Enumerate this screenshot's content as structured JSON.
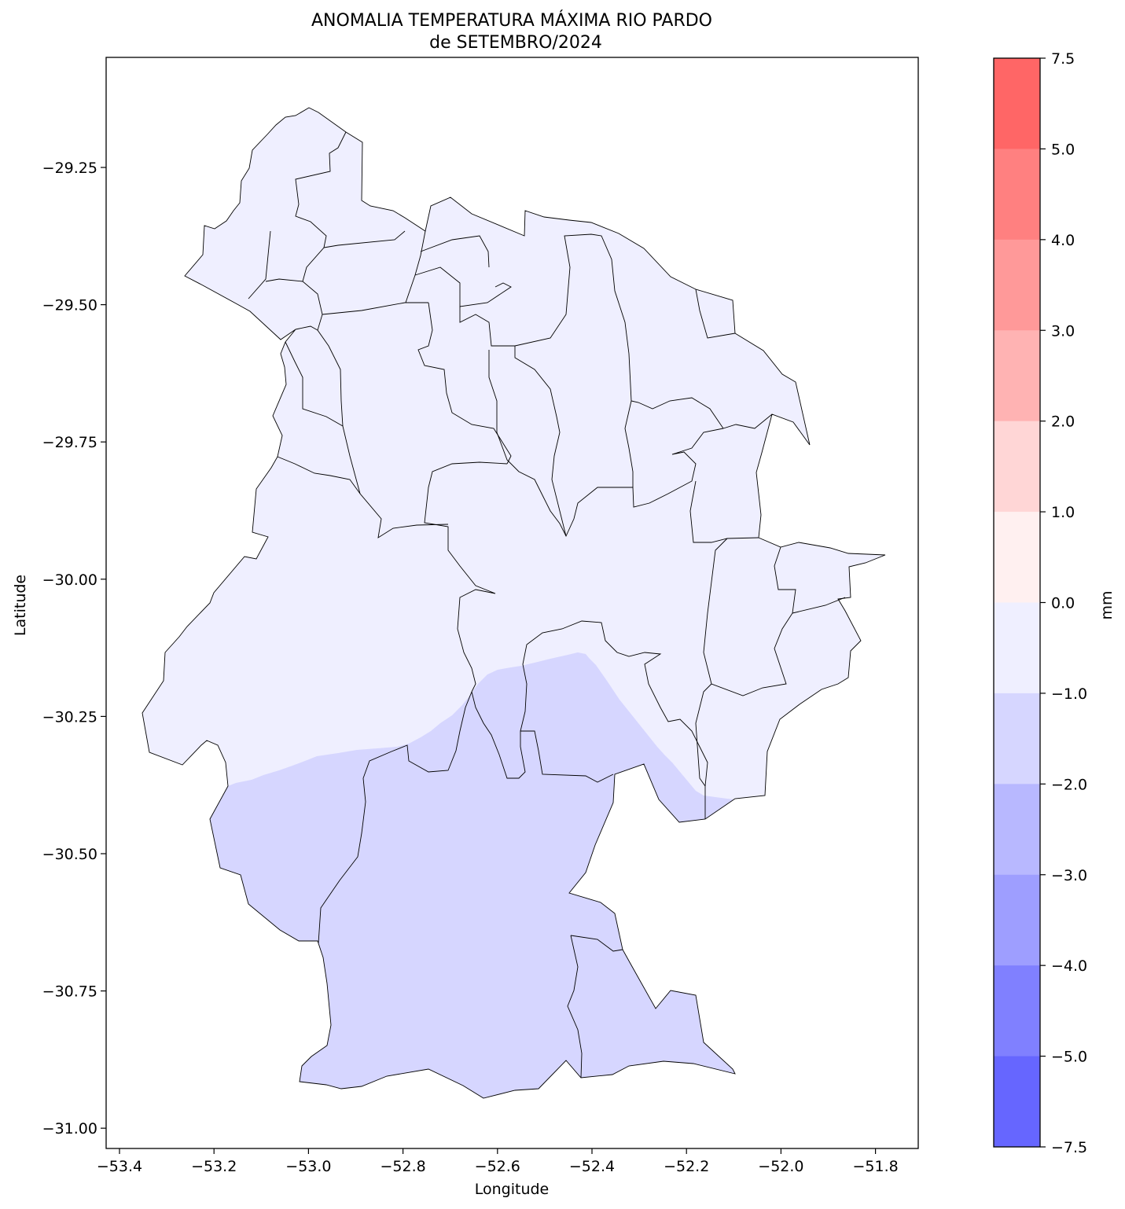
{
  "title_line1": "ANOMALIA TEMPERATURA MÁXIMA RIO PARDO",
  "title_line2": "de SETEMBRO/2024",
  "xlabel": "Longitude",
  "ylabel": "Latitude",
  "x_ticks": [
    "−53.4",
    "−53.2",
    "−53.0",
    "−52.8",
    "−52.6",
    "−52.4",
    "−52.2",
    "−52.0",
    "−51.8"
  ],
  "y_ticks": [
    "−29.25",
    "−29.50",
    "−29.75",
    "−30.00",
    "−30.25",
    "−30.50",
    "−30.75",
    "−31.00"
  ],
  "colorbar": {
    "label": "mm",
    "tick_labels": [
      "7.5",
      "5.0",
      "4.0",
      "3.0",
      "2.0",
      "1.0",
      "0.0",
      "−1.0",
      "−2.0",
      "−3.0",
      "−4.0",
      "−5.0",
      "−7.5"
    ],
    "colors_top_to_bottom": [
      "#ff6666",
      "#ff8080",
      "#ff9999",
      "#ffb3b3",
      "#ffd6d6",
      "#fff0f0",
      "#efefff",
      "#d6d6ff",
      "#b8b8ff",
      "#9e9eff",
      "#8080ff",
      "#6666ff"
    ]
  },
  "chart_data": {
    "type": "heatmap",
    "title": "ANOMALIA TEMPERATURA MÁXIMA RIO PARDO de SETEMBRO/2024",
    "xlabel": "Longitude",
    "ylabel": "Latitude",
    "xlim": [
      -53.42,
      -51.72
    ],
    "ylim": [
      -31.04,
      -29.04
    ],
    "colorbar_levels": [
      -7.5,
      -5.0,
      -4.0,
      -3.0,
      -2.0,
      -1.0,
      0.0,
      1.0,
      2.0,
      3.0,
      4.0,
      5.0,
      7.5
    ],
    "regions": [
      {
        "name": "north",
        "value_range": [
          -1.0,
          0.0
        ],
        "color": "#efefff"
      },
      {
        "name": "south",
        "value_range": [
          -2.0,
          -1.0
        ],
        "color": "#d6d6ff"
      }
    ]
  }
}
